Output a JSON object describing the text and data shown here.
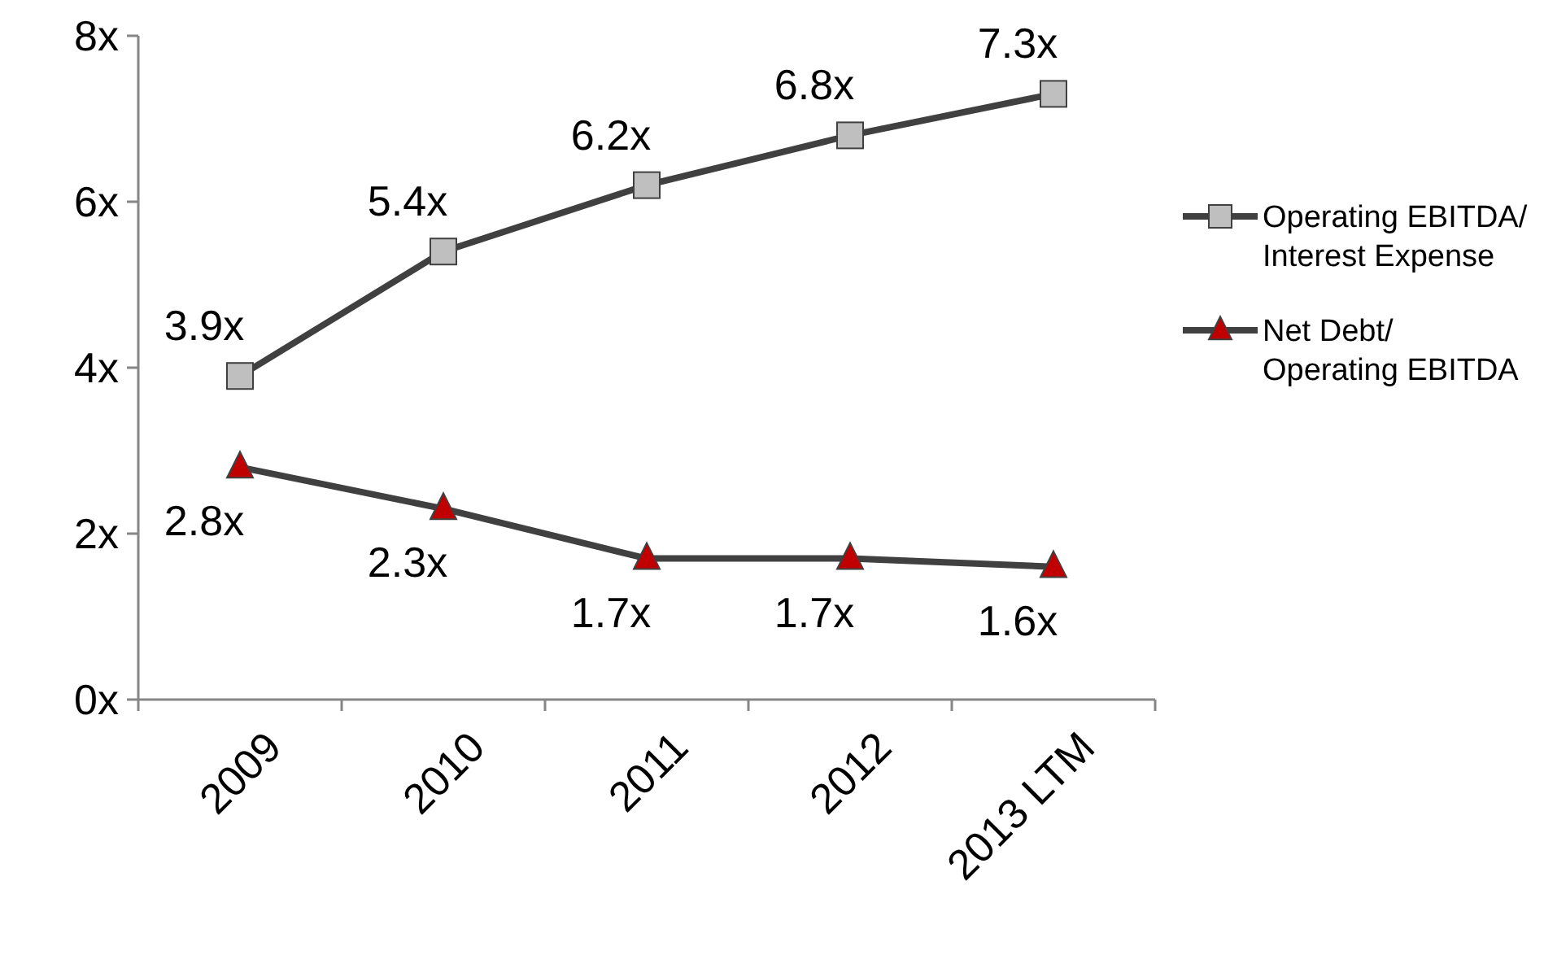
{
  "chart_data": {
    "type": "line",
    "categories": [
      "2009",
      "2010",
      "2011",
      "2012",
      "2013 LTM"
    ],
    "ylim": [
      0,
      8
    ],
    "yticks": [
      {
        "value": 0,
        "label": "0x"
      },
      {
        "value": 2,
        "label": "2x"
      },
      {
        "value": 4,
        "label": "4x"
      },
      {
        "value": 6,
        "label": "6x"
      },
      {
        "value": 8,
        "label": "8x"
      }
    ],
    "grid": false,
    "legend": "right",
    "series": [
      {
        "name": "Operating EBITDA/ Interest Expense",
        "color": "#404040",
        "marker": "square",
        "values": [
          3.9,
          5.4,
          6.2,
          6.8,
          7.3
        ],
        "value_labels": [
          "3.9x",
          "5.4x",
          "6.2x",
          "6.8x",
          "7.3x"
        ]
      },
      {
        "name": "Net Debt/ Operating EBITDA",
        "color": "#404040",
        "marker": "triangle",
        "values": [
          2.8,
          2.3,
          1.7,
          1.7,
          1.6
        ],
        "value_labels": [
          "2.8x",
          "2.3x",
          "1.7x",
          "1.7x",
          "1.6x"
        ]
      }
    ]
  }
}
